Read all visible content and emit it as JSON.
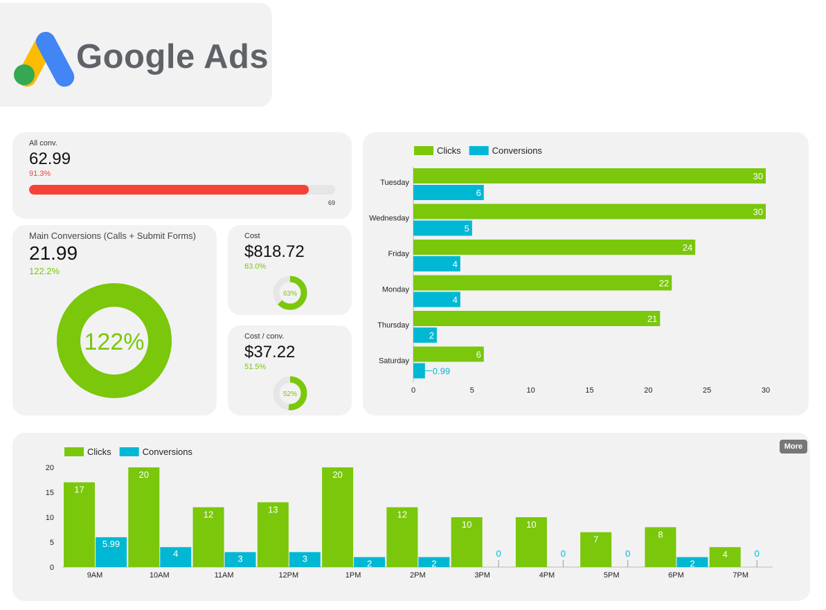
{
  "brand": {
    "name": "Google Ads",
    "logo": "google-ads-logo"
  },
  "kpis": {
    "all_conv": {
      "label": "All conv.",
      "value": "62.99",
      "pct": "91.3%",
      "progress": 0.913,
      "target": "69",
      "color": "#f44336"
    },
    "main_conv": {
      "label": "Main Conversions (Calls + Submit Forms)",
      "value": "21.99",
      "pct": "122.2%",
      "center": "122%",
      "progress": 1.222,
      "color": "#7ac70c"
    },
    "cost": {
      "label": "Cost",
      "value": "$818.72",
      "pct": "63.0%",
      "center": "63%",
      "progress": 0.63,
      "color": "#7ac70c"
    },
    "cost_conv": {
      "label": "Cost / conv.",
      "value": "$37.22",
      "pct": "51.5%",
      "center": "52%",
      "progress": 0.515,
      "color": "#7ac70c"
    }
  },
  "colors": {
    "clicks": "#7ac70c",
    "conversions": "#00b8d4",
    "card": "#f2f2f2"
  },
  "more_label": "More",
  "chart_data": [
    {
      "type": "bar",
      "orientation": "horizontal",
      "categories": [
        "Tuesday",
        "Wednesday",
        "Friday",
        "Monday",
        "Thursday",
        "Saturday"
      ],
      "series": [
        {
          "name": "Clicks",
          "values": [
            30,
            30,
            24,
            22,
            21,
            6
          ],
          "labels": [
            "30",
            "30",
            "24",
            "22",
            "21",
            "6"
          ]
        },
        {
          "name": "Conversions",
          "values": [
            6,
            5,
            4,
            4,
            2,
            0.99
          ],
          "labels": [
            "6",
            "5",
            "4",
            "4",
            "2",
            "0.99"
          ]
        }
      ],
      "xlim": [
        0,
        30
      ],
      "xticks": [
        "0",
        "5",
        "10",
        "15",
        "20",
        "25",
        "30"
      ],
      "legend": "top-left",
      "grid": false
    },
    {
      "type": "bar",
      "orientation": "vertical",
      "categories": [
        "9AM",
        "10AM",
        "11AM",
        "12PM",
        "1PM",
        "2PM",
        "3PM",
        "4PM",
        "5PM",
        "6PM",
        "7PM"
      ],
      "series": [
        {
          "name": "Clicks",
          "values": [
            17,
            20,
            12,
            13,
            20,
            12,
            10,
            10,
            7,
            8,
            4
          ],
          "labels": [
            "17",
            "20",
            "12",
            "13",
            "20",
            "12",
            "10",
            "10",
            "7",
            "8",
            "4"
          ]
        },
        {
          "name": "Conversions",
          "values": [
            5.99,
            4,
            3,
            3,
            2,
            2,
            0,
            0,
            0,
            2,
            0
          ],
          "labels": [
            "5.99",
            "4",
            "3",
            "3",
            "2",
            "2",
            "0",
            "0",
            "0",
            "2",
            "0"
          ]
        }
      ],
      "ylim": [
        0,
        20
      ],
      "yticks": [
        "0",
        "5",
        "10",
        "15",
        "20"
      ],
      "legend": "top-left",
      "grid": false
    }
  ]
}
